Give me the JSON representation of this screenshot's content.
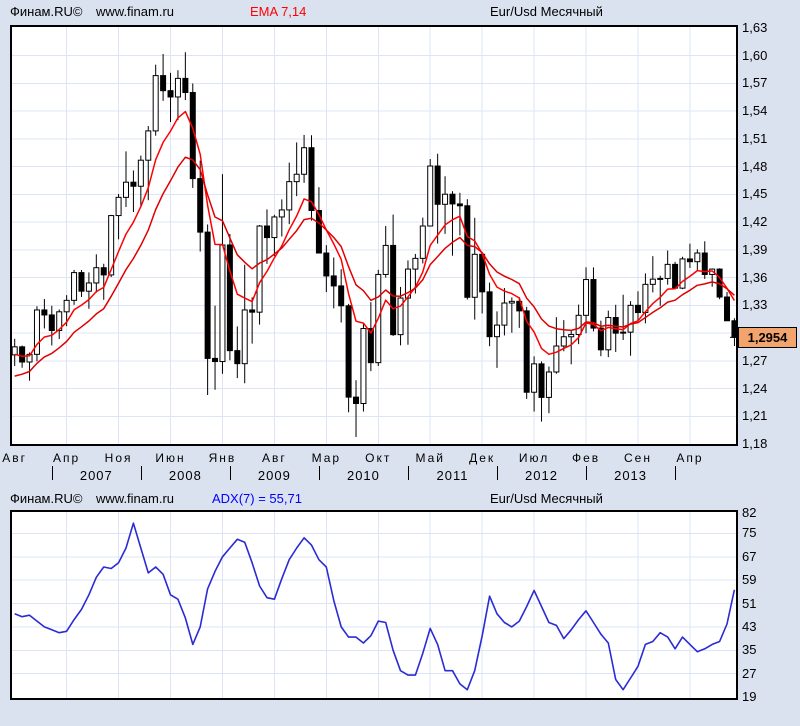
{
  "top_header": {
    "brand": "Финам.RU©",
    "site": "www.finam.ru",
    "indicator": "EMA 7,14",
    "symbol": "Eur/Usd Месячный"
  },
  "bottom_header": {
    "brand": "Финам.RU©",
    "site": "www.finam.ru",
    "indicator": "ADX(7) = 55,71",
    "symbol": "Eur/Usd Месячный"
  },
  "price_badge": {
    "label": "1,2954",
    "value": 1.2954
  },
  "colors": {
    "background": "#dbe2ef",
    "panel": "#ffffff",
    "grid": "#dde5f5",
    "border": "#000000",
    "candle_up_fill": "#ffffff",
    "candle_down_fill": "#000000",
    "candle_stroke": "#000000",
    "ema7": "#ff0000",
    "ema14": "#e00000",
    "adx_line": "#2b2bd5",
    "indicator_label_top": "#ff0000",
    "indicator_label_bottom": "#0000ff",
    "badge_bg": "#f3a46c",
    "text": "#000000"
  },
  "chart_data": [
    {
      "type": "candlestick",
      "title": "Eur/Usd Месячный",
      "indicator": "EMA 7,14",
      "ema_periods": [
        7,
        14
      ],
      "ema_seeds": [
        1.277,
        1.2535
      ],
      "ylim": [
        1.18,
        1.63
      ],
      "y_step": 0.03,
      "grid": true,
      "legend_position": "top",
      "y_tick_labels": [
        {
          "label": "1,63",
          "value": 1.63
        },
        {
          "label": "1,60",
          "value": 1.6
        },
        {
          "label": "1,57",
          "value": 1.57
        },
        {
          "label": "1,54",
          "value": 1.54
        },
        {
          "label": "1,51",
          "value": 1.51
        },
        {
          "label": "1,48",
          "value": 1.48
        },
        {
          "label": "1,45",
          "value": 1.45
        },
        {
          "label": "1,42",
          "value": 1.42
        },
        {
          "label": "1,39",
          "value": 1.39
        },
        {
          "label": "1,36",
          "value": 1.36
        },
        {
          "label": "1,33",
          "value": 1.33
        },
        {
          "label": "1,27",
          "value": 1.27
        },
        {
          "label": "1,24",
          "value": 1.24
        },
        {
          "label": "1,21",
          "value": 1.21
        },
        {
          "label": "1,18",
          "value": 1.18
        }
      ],
      "last_price": 1.2954,
      "x_axis": {
        "month_labels": [
          "Авг",
          "Апр",
          "Ноя",
          "Июн",
          "Янв",
          "Авг",
          "Мар",
          "Окт",
          "Май",
          "Дек",
          "Июл",
          "Фев",
          "Сен",
          "Апр"
        ],
        "month_label_step": 7,
        "year_labels": [
          "2007",
          "2008",
          "2009",
          "2010",
          "2011",
          "2012",
          "2013"
        ],
        "year_tick_indices": [
          5,
          17,
          29,
          41,
          53,
          65,
          77,
          89
        ]
      },
      "candles": [
        [
          1.2764,
          1.2938,
          1.2644,
          1.2851
        ],
        [
          1.2851,
          1.2865,
          1.2625,
          1.2687
        ],
        [
          1.2687,
          1.279,
          1.2485,
          1.277
        ],
        [
          1.277,
          1.329,
          1.2694,
          1.325
        ],
        [
          1.325,
          1.3368,
          1.305,
          1.3196
        ],
        [
          1.3196,
          1.3295,
          1.2866,
          1.3028
        ],
        [
          1.3028,
          1.3255,
          1.2935,
          1.323
        ],
        [
          1.323,
          1.341,
          1.3075,
          1.3354
        ],
        [
          1.3354,
          1.3683,
          1.3305,
          1.3654
        ],
        [
          1.3654,
          1.3682,
          1.339,
          1.3453
        ],
        [
          1.3453,
          1.3656,
          1.3263,
          1.3542
        ],
        [
          1.3542,
          1.3852,
          1.3438,
          1.3707
        ],
        [
          1.3707,
          1.375,
          1.336,
          1.3629
        ],
        [
          1.3629,
          1.4278,
          1.3606,
          1.4271
        ],
        [
          1.4271,
          1.4504,
          1.4014,
          1.4468
        ],
        [
          1.4468,
          1.4966,
          1.4364,
          1.4632
        ],
        [
          1.4632,
          1.4759,
          1.4309,
          1.4588
        ],
        [
          1.4588,
          1.492,
          1.4365,
          1.487
        ],
        [
          1.487,
          1.5239,
          1.4437,
          1.5187
        ],
        [
          1.5187,
          1.5903,
          1.5135,
          1.5785
        ],
        [
          1.5785,
          1.6019,
          1.5512,
          1.5622
        ],
        [
          1.5622,
          1.5815,
          1.5283,
          1.5554
        ],
        [
          1.5554,
          1.5843,
          1.5303,
          1.5755
        ],
        [
          1.5755,
          1.6038,
          1.552,
          1.5602
        ],
        [
          1.5602,
          1.57,
          1.457,
          1.4671
        ],
        [
          1.4671,
          1.4866,
          1.3882,
          1.4092
        ],
        [
          1.4092,
          1.4174,
          1.233,
          1.2726
        ],
        [
          1.2726,
          1.3297,
          1.2387,
          1.2692
        ],
        [
          1.2692,
          1.4719,
          1.256,
          1.3953
        ],
        [
          1.3953,
          1.4072,
          1.2706,
          1.281
        ],
        [
          1.281,
          1.3072,
          1.2513,
          1.2669
        ],
        [
          1.2669,
          1.3739,
          1.2457,
          1.325
        ],
        [
          1.325,
          1.3387,
          1.2886,
          1.3226
        ],
        [
          1.3226,
          1.4169,
          1.3092,
          1.4158
        ],
        [
          1.4158,
          1.4338,
          1.3749,
          1.4033
        ],
        [
          1.4033,
          1.4279,
          1.3833,
          1.4256
        ],
        [
          1.4256,
          1.4446,
          1.4045,
          1.4332
        ],
        [
          1.4332,
          1.4844,
          1.4178,
          1.4638
        ],
        [
          1.4638,
          1.5062,
          1.4481,
          1.4718
        ],
        [
          1.4718,
          1.5144,
          1.4625,
          1.5005
        ],
        [
          1.5005,
          1.514,
          1.4216,
          1.4326
        ],
        [
          1.4326,
          1.4578,
          1.3862,
          1.3866
        ],
        [
          1.3866,
          1.3951,
          1.3443,
          1.3618
        ],
        [
          1.3618,
          1.3817,
          1.3267,
          1.351
        ],
        [
          1.351,
          1.3691,
          1.3114,
          1.3295
        ],
        [
          1.3295,
          1.3316,
          1.2143,
          1.2307
        ],
        [
          1.2307,
          1.249,
          1.1876,
          1.2238
        ],
        [
          1.2238,
          1.3106,
          1.2151,
          1.3049
        ],
        [
          1.3049,
          1.3334,
          1.2588,
          1.268
        ],
        [
          1.268,
          1.3684,
          1.2644,
          1.3634
        ],
        [
          1.3634,
          1.4159,
          1.36,
          1.3948
        ],
        [
          1.3948,
          1.4282,
          1.2969,
          1.2983
        ],
        [
          1.2983,
          1.3499,
          1.2867,
          1.3379
        ],
        [
          1.3379,
          1.3786,
          1.2874,
          1.3692
        ],
        [
          1.3692,
          1.3856,
          1.3428,
          1.3808
        ],
        [
          1.3808,
          1.4249,
          1.3753,
          1.4158
        ],
        [
          1.4158,
          1.4882,
          1.4155,
          1.4807
        ],
        [
          1.4807,
          1.494,
          1.3968,
          1.4393
        ],
        [
          1.4393,
          1.4696,
          1.4073,
          1.4502
        ],
        [
          1.4502,
          1.4535,
          1.3837,
          1.4397
        ],
        [
          1.4397,
          1.4517,
          1.4056,
          1.4377
        ],
        [
          1.4377,
          1.4448,
          1.3363,
          1.3387
        ],
        [
          1.3387,
          1.4247,
          1.3146,
          1.3852
        ],
        [
          1.3852,
          1.386,
          1.3212,
          1.3446
        ],
        [
          1.3446,
          1.3546,
          1.2858,
          1.2961
        ],
        [
          1.2961,
          1.3234,
          1.2624,
          1.3086
        ],
        [
          1.3086,
          1.3487,
          1.2974,
          1.3325
        ],
        [
          1.3325,
          1.3386,
          1.3004,
          1.3343
        ],
        [
          1.3343,
          1.3388,
          1.3056,
          1.324
        ],
        [
          1.324,
          1.3284,
          1.2288,
          1.236
        ],
        [
          1.236,
          1.2748,
          1.2151,
          1.2667
        ],
        [
          1.2667,
          1.2693,
          1.2042,
          1.2304
        ],
        [
          1.2304,
          1.2638,
          1.2133,
          1.2579
        ],
        [
          1.2579,
          1.3172,
          1.256,
          1.286
        ],
        [
          1.286,
          1.314,
          1.2803,
          1.296
        ],
        [
          1.296,
          1.3028,
          1.2662,
          1.2985
        ],
        [
          1.2985,
          1.3308,
          1.288,
          1.3192
        ],
        [
          1.3192,
          1.3711,
          1.2998,
          1.3579
        ],
        [
          1.3579,
          1.371,
          1.3018,
          1.3054
        ],
        [
          1.3054,
          1.3134,
          1.275,
          1.2819
        ],
        [
          1.2819,
          1.3243,
          1.274,
          1.3168
        ],
        [
          1.3168,
          1.3306,
          1.2796,
          1.2999
        ],
        [
          1.2999,
          1.3415,
          1.2925,
          1.301
        ],
        [
          1.301,
          1.3345,
          1.2755,
          1.33
        ],
        [
          1.33,
          1.3452,
          1.3138,
          1.3222
        ],
        [
          1.3222,
          1.3646,
          1.3105,
          1.3527
        ],
        [
          1.3527,
          1.3832,
          1.344,
          1.3583
        ],
        [
          1.3583,
          1.362,
          1.3295,
          1.3591
        ],
        [
          1.3591,
          1.3893,
          1.3524,
          1.3743
        ],
        [
          1.3743,
          1.377,
          1.3477,
          1.3486
        ],
        [
          1.3486,
          1.3825,
          1.3475,
          1.3802
        ],
        [
          1.3802,
          1.3967,
          1.3704,
          1.3772
        ],
        [
          1.3772,
          1.3906,
          1.3673,
          1.3866
        ],
        [
          1.3866,
          1.3993,
          1.3586,
          1.3634
        ],
        [
          1.3634,
          1.37,
          1.3502,
          1.3692
        ],
        [
          1.3692,
          1.3701,
          1.3366,
          1.339
        ],
        [
          1.339,
          1.3445,
          1.3133,
          1.3133
        ],
        [
          1.3133,
          1.316,
          1.286,
          1.2954
        ]
      ]
    },
    {
      "type": "line",
      "name": "ADX(7)",
      "last_value": 55.71,
      "ylim": [
        19,
        82
      ],
      "grid": true,
      "y_tick_labels": [
        {
          "label": "82",
          "value": 82
        },
        {
          "label": "75",
          "value": 75
        },
        {
          "label": "67",
          "value": 67
        },
        {
          "label": "59",
          "value": 59
        },
        {
          "label": "51",
          "value": 51
        },
        {
          "label": "43",
          "value": 43
        },
        {
          "label": "35",
          "value": 35
        },
        {
          "label": "27",
          "value": 27
        },
        {
          "label": "19",
          "value": 19
        }
      ],
      "values": [
        47.5,
        46.5,
        47,
        45,
        43,
        42,
        41,
        41.5,
        45.5,
        49,
        54,
        60,
        63.5,
        63,
        65,
        70,
        78.5,
        70,
        61.5,
        63.5,
        61,
        54,
        52.5,
        46,
        37,
        43,
        56,
        62,
        67,
        70,
        73,
        72,
        65,
        57,
        53,
        52.5,
        59.5,
        66,
        70,
        73.5,
        71,
        66,
        63.5,
        52,
        43,
        39.5,
        39.5,
        37.5,
        40,
        45,
        44.5,
        35,
        28,
        26.5,
        26.5,
        34,
        42.5,
        37,
        28,
        28,
        23.5,
        21.5,
        28,
        40,
        53.5,
        47.5,
        44.5,
        43,
        45,
        50,
        55.5,
        50,
        44.5,
        43.5,
        39,
        42,
        45.5,
        48.5,
        44.5,
        40.5,
        37.5,
        25,
        21.5,
        25.5,
        29.5,
        37,
        38,
        41,
        39.5,
        35.5,
        39.5,
        37,
        34.5,
        35.5,
        37,
        38,
        44,
        55.71
      ]
    }
  ]
}
